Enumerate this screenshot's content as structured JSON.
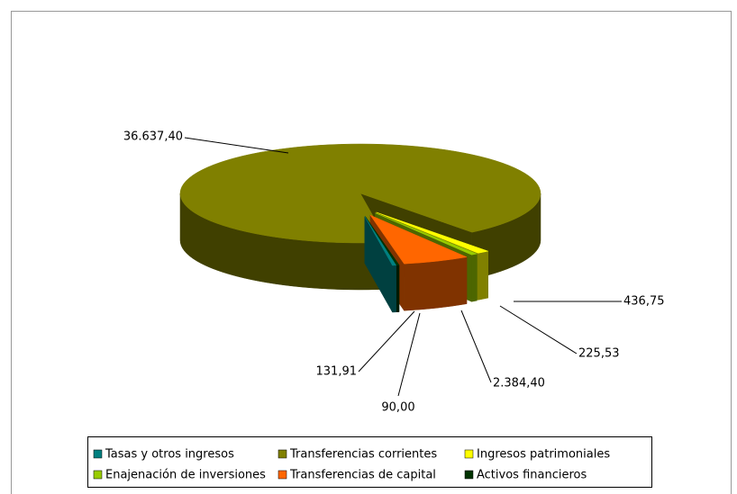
{
  "chart_data": {
    "type": "pie",
    "categories": [
      "Tasas y otros ingresos",
      "Transferencias corrientes",
      "Ingresos patrimoniales",
      "Enajenación de inversiones",
      "Transferencias de capital",
      "Activos financieros"
    ],
    "values": [
      131.91,
      36637.4,
      436.75,
      225.53,
      2384.4,
      90.0
    ],
    "value_labels": [
      "131,91",
      "36.637,40",
      "436,75",
      "225,53",
      "2.384,40",
      "90,00"
    ],
    "colors": [
      "#008080",
      "#808000",
      "#ffff00",
      "#99cc00",
      "#ff6600",
      "#003300"
    ],
    "legend": "bottom"
  }
}
